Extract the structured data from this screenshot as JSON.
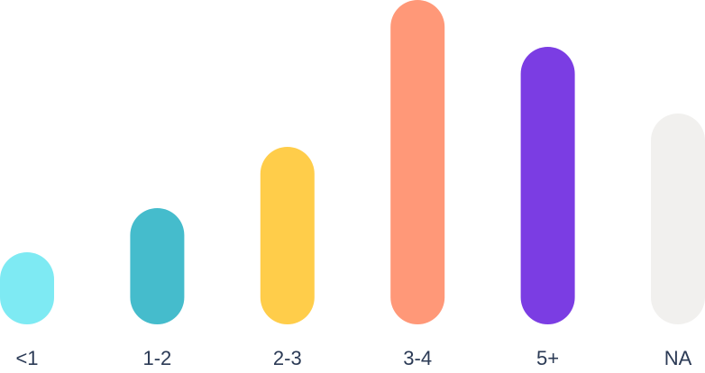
{
  "chart_data": {
    "type": "bar",
    "categories": [
      "<1",
      "1-2",
      "2-3",
      "3-4",
      "5+",
      "NA"
    ],
    "values": [
      80,
      129,
      197,
      360,
      308,
      234
    ],
    "colors": [
      "#7eeaf3",
      "#45bccc",
      "#ffcd4a",
      "#ff9878",
      "#7b3de3",
      "#f1f0ee"
    ],
    "ylim": [
      0,
      360
    ]
  }
}
